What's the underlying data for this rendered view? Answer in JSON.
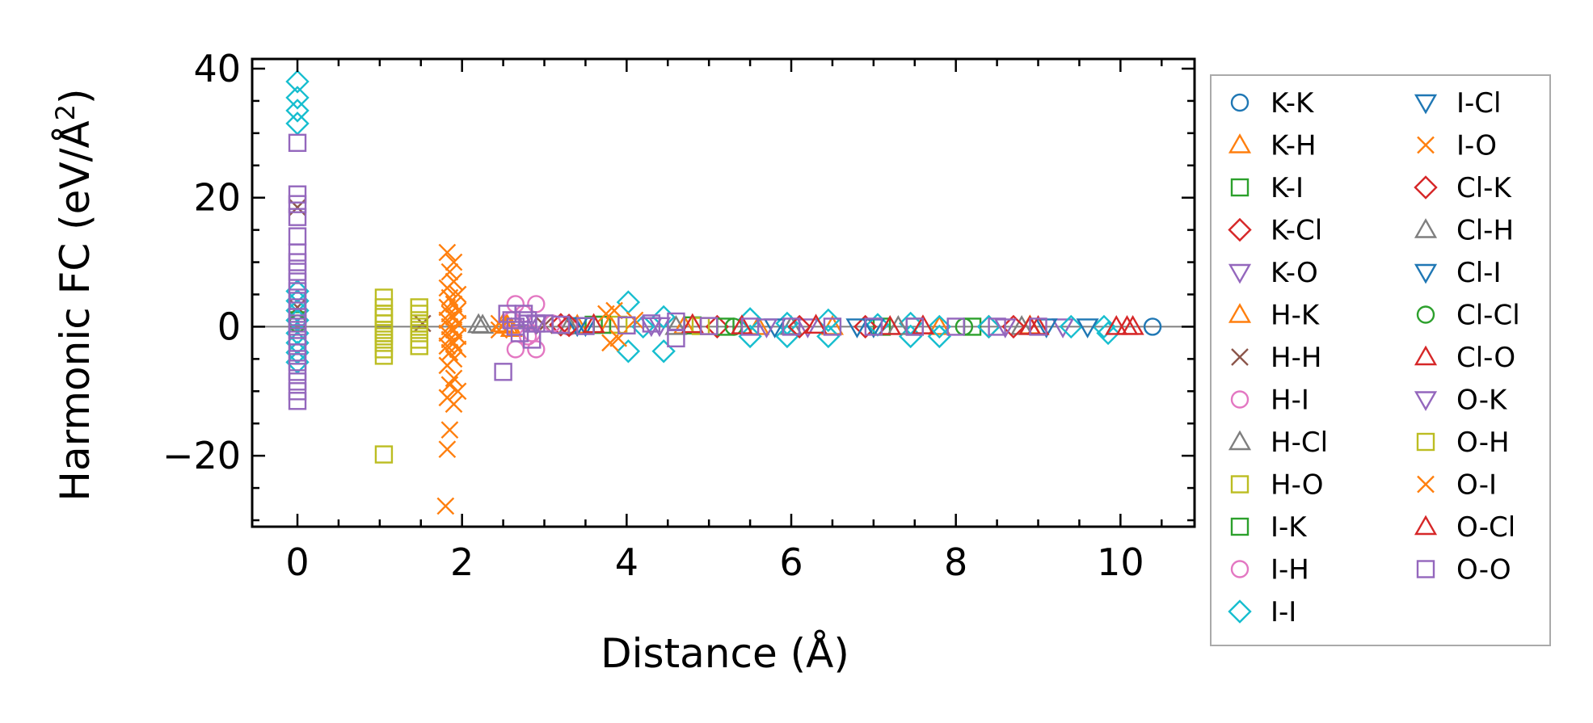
{
  "chart_data": {
    "type": "scatter",
    "xlabel": "Distance (Å)",
    "ylabel": "Harmonic FC (eV/Å",
    "ylabel_sup": "2",
    "ylabel_close": ")",
    "xlim": [
      -0.55,
      10.9
    ],
    "ylim": [
      -31,
      41.5
    ],
    "xticks": [
      0,
      2,
      4,
      6,
      8,
      10
    ],
    "yticks": [
      -20,
      0,
      20,
      40
    ],
    "xtick_labels": [
      "0",
      "2",
      "4",
      "6",
      "8",
      "10"
    ],
    "ytick_labels": [
      "−20",
      "0",
      "20",
      "40"
    ],
    "grid": false,
    "zero_line": true,
    "legend_position": "outside-right",
    "series": [
      {
        "name": "K-K",
        "color": "#1f77b4",
        "marker": "circle",
        "points": [
          [
            10.39,
            0
          ]
        ]
      },
      {
        "name": "K-H",
        "color": "#ff7f0e",
        "marker": "triangle-up",
        "points": [
          [
            2.5,
            0.4
          ],
          [
            2.6,
            -0.3
          ],
          [
            3.4,
            0.2
          ],
          [
            4.7,
            0.1
          ],
          [
            6.5,
            0.0
          ],
          [
            8.9,
            0.1
          ]
        ]
      },
      {
        "name": "K-I",
        "color": "#2ca02c",
        "marker": "square",
        "points": [
          [
            3.6,
            0.3
          ],
          [
            4.8,
            0.2
          ],
          [
            7.1,
            0.0
          ],
          [
            8.2,
            0.0
          ]
        ]
      },
      {
        "name": "K-Cl",
        "color": "#d62728",
        "marker": "diamond",
        "points": [
          [
            3.2,
            0.3
          ],
          [
            5.1,
            0.0
          ],
          [
            6.9,
            0.0
          ],
          [
            8.4,
            0.0
          ]
        ]
      },
      {
        "name": "K-O",
        "color": "#9467bd",
        "marker": "triangle-down",
        "points": [
          [
            2.8,
            0.6
          ],
          [
            4.4,
            0.2
          ],
          [
            6.2,
            0.0
          ],
          [
            9.3,
            0.0
          ]
        ]
      },
      {
        "name": "H-K",
        "color": "#ff7f0e",
        "marker": "triangle-up",
        "points": [
          [
            2.55,
            0.2
          ],
          [
            3.8,
            0.2
          ],
          [
            5.6,
            0.0
          ],
          [
            7.8,
            0.0
          ]
        ]
      },
      {
        "name": "H-H",
        "color": "#8c564b",
        "marker": "x",
        "points": [
          [
            0,
            18.5
          ],
          [
            0,
            3.0
          ],
          [
            1.52,
            0.5
          ],
          [
            3.0,
            0.2
          ]
        ]
      },
      {
        "name": "H-I",
        "color": "#e377c2",
        "marker": "circle",
        "points": [
          [
            2.65,
            3.5
          ],
          [
            2.9,
            3.5
          ],
          [
            2.65,
            -3.5
          ],
          [
            2.9,
            -3.5
          ],
          [
            2.75,
            2.0
          ],
          [
            2.8,
            -1.5
          ],
          [
            3.3,
            0.0
          ]
        ]
      },
      {
        "name": "H-Cl",
        "color": "#7f7f7f",
        "marker": "triangle-up",
        "points": [
          [
            2.2,
            0.3
          ],
          [
            3.3,
            0.1
          ],
          [
            6.0,
            0.0
          ],
          [
            8.8,
            0.0
          ]
        ]
      },
      {
        "name": "H-O",
        "color": "#bcbd22",
        "marker": "square",
        "points": [
          [
            1.05,
            4.5
          ],
          [
            1.05,
            3.0
          ],
          [
            1.05,
            1.5
          ],
          [
            1.05,
            0.5
          ],
          [
            1.05,
            -0.5
          ],
          [
            1.05,
            -1.5
          ],
          [
            1.05,
            -2.5
          ],
          [
            1.05,
            -3.5
          ],
          [
            1.05,
            -4.5
          ],
          [
            1.05,
            -19.8
          ],
          [
            1.48,
            3.0
          ],
          [
            1.48,
            2.0
          ],
          [
            1.48,
            1.0
          ],
          [
            1.48,
            0.0
          ],
          [
            1.48,
            -1.0
          ],
          [
            1.48,
            -2.0
          ],
          [
            1.48,
            -3.0
          ],
          [
            3.9,
            0.3
          ],
          [
            4.9,
            0.1
          ]
        ]
      },
      {
        "name": "I-K",
        "color": "#2ca02c",
        "marker": "square",
        "points": [
          [
            0,
            1.0
          ],
          [
            3.7,
            0.3
          ],
          [
            5.2,
            0.0
          ],
          [
            7.5,
            0.0
          ]
        ]
      },
      {
        "name": "I-H",
        "color": "#e377c2",
        "marker": "circle",
        "points": [
          [
            2.6,
            1.0
          ],
          [
            2.85,
            -1.0
          ],
          [
            3.1,
            0.5
          ]
        ]
      },
      {
        "name": "I-I",
        "color": "#17becf",
        "marker": "diamond",
        "points": [
          [
            0,
            38.0
          ],
          [
            0,
            35.5
          ],
          [
            0,
            33.5
          ],
          [
            0,
            31.5
          ],
          [
            0,
            5.5
          ],
          [
            0,
            4.0
          ],
          [
            0,
            2.5
          ],
          [
            0,
            1.0
          ],
          [
            0,
            -1.0
          ],
          [
            0,
            -2.5
          ],
          [
            0,
            -4.0
          ],
          [
            0,
            -5.5
          ],
          [
            4.02,
            3.8
          ],
          [
            4.02,
            -3.8
          ],
          [
            4.45,
            1.5
          ],
          [
            4.45,
            -3.8
          ],
          [
            4.2,
            0.0
          ],
          [
            5.5,
            1.2
          ],
          [
            5.5,
            -1.5
          ],
          [
            5.95,
            0.5
          ],
          [
            5.95,
            -1.5
          ],
          [
            6.45,
            1.0
          ],
          [
            6.45,
            -1.5
          ],
          [
            7.05,
            0.3
          ],
          [
            7.45,
            0.5
          ],
          [
            7.45,
            -1.5
          ],
          [
            7.8,
            0.0
          ],
          [
            7.8,
            -1.5
          ],
          [
            8.4,
            0.0
          ],
          [
            9.4,
            0.0
          ],
          [
            9.8,
            0.0
          ],
          [
            9.85,
            -1.0
          ]
        ]
      },
      {
        "name": "I-Cl",
        "color": "#1f77b4",
        "marker": "triangle-down",
        "points": [
          [
            3.4,
            0.2
          ],
          [
            5.8,
            0.0
          ],
          [
            7.0,
            0.0
          ],
          [
            9.6,
            0.0
          ]
        ]
      },
      {
        "name": "I-O",
        "color": "#ff7f0e",
        "marker": "x",
        "points": [
          [
            3.75,
            2.0
          ],
          [
            3.85,
            2.5
          ],
          [
            3.9,
            -1.8
          ],
          [
            3.8,
            -2.5
          ],
          [
            4.1,
            1.0
          ]
        ]
      },
      {
        "name": "Cl-K",
        "color": "#d62728",
        "marker": "diamond",
        "points": [
          [
            3.3,
            0.2
          ],
          [
            6.1,
            0.0
          ],
          [
            8.7,
            0.0
          ]
        ]
      },
      {
        "name": "Cl-H",
        "color": "#7f7f7f",
        "marker": "triangle-up",
        "points": [
          [
            2.25,
            0.2
          ],
          [
            4.6,
            0.0
          ],
          [
            7.3,
            0.0
          ]
        ]
      },
      {
        "name": "Cl-I",
        "color": "#1f77b4",
        "marker": "triangle-down",
        "points": [
          [
            3.5,
            0.2
          ],
          [
            6.8,
            0.0
          ],
          [
            9.1,
            0.0
          ]
        ]
      },
      {
        "name": "Cl-Cl",
        "color": "#2ca02c",
        "marker": "circle",
        "points": [
          [
            0,
            0.5
          ],
          [
            5.3,
            0.0
          ],
          [
            8.1,
            0.0
          ]
        ]
      },
      {
        "name": "Cl-O",
        "color": "#d62728",
        "marker": "triangle-up",
        "points": [
          [
            4.8,
            0.3
          ],
          [
            6.3,
            0.2
          ],
          [
            7.6,
            0.1
          ],
          [
            8.9,
            0.0
          ],
          [
            9.95,
            0.0
          ],
          [
            10.08,
            0.0
          ]
        ]
      },
      {
        "name": "O-K",
        "color": "#9467bd",
        "marker": "triangle-down",
        "points": [
          [
            2.9,
            0.5
          ],
          [
            4.3,
            0.2
          ],
          [
            5.7,
            0.0
          ],
          [
            8.6,
            0.0
          ]
        ]
      },
      {
        "name": "O-H",
        "color": "#bcbd22",
        "marker": "square",
        "points": [
          [
            1.05,
            2.0
          ],
          [
            1.05,
            -1.0
          ],
          [
            1.48,
            0.5
          ],
          [
            4.0,
            0.2
          ]
        ]
      },
      {
        "name": "O-I",
        "color": "#ff7f0e",
        "marker": "x",
        "points": [
          [
            1.82,
            11.5
          ],
          [
            1.9,
            10.0
          ],
          [
            1.85,
            8.5
          ],
          [
            1.9,
            7.0
          ],
          [
            1.82,
            6.0
          ],
          [
            1.95,
            5.0
          ],
          [
            1.85,
            4.5
          ],
          [
            1.9,
            3.5
          ],
          [
            1.82,
            3.0
          ],
          [
            1.95,
            2.5
          ],
          [
            1.85,
            2.0
          ],
          [
            1.9,
            1.5
          ],
          [
            1.82,
            1.0
          ],
          [
            1.95,
            0.5
          ],
          [
            1.85,
            0.0
          ],
          [
            1.9,
            -0.5
          ],
          [
            1.82,
            -1.0
          ],
          [
            1.95,
            -1.5
          ],
          [
            1.85,
            -2.0
          ],
          [
            1.9,
            -2.5
          ],
          [
            1.82,
            -3.0
          ],
          [
            1.95,
            -3.5
          ],
          [
            1.85,
            -4.0
          ],
          [
            1.9,
            -5.0
          ],
          [
            1.82,
            -6.0
          ],
          [
            1.9,
            -8.0
          ],
          [
            1.85,
            -9.0
          ],
          [
            1.95,
            -10.0
          ],
          [
            1.82,
            -11.0
          ],
          [
            1.9,
            -12.0
          ],
          [
            1.85,
            -16.0
          ],
          [
            1.82,
            -19.0
          ],
          [
            1.8,
            -27.8
          ],
          [
            2.45,
            0.5
          ],
          [
            2.45,
            -0.5
          ]
        ]
      },
      {
        "name": "O-Cl",
        "color": "#d62728",
        "marker": "triangle-up",
        "points": [
          [
            3.6,
            0.3
          ],
          [
            5.4,
            0.1
          ],
          [
            7.2,
            0.0
          ],
          [
            9.0,
            0.0
          ],
          [
            10.15,
            0.0
          ]
        ]
      },
      {
        "name": "O-O",
        "color": "#9467bd",
        "marker": "square",
        "points": [
          [
            0,
            28.5
          ],
          [
            0,
            20.5
          ],
          [
            0,
            19.0
          ],
          [
            0,
            17.0
          ],
          [
            0,
            14.0
          ],
          [
            0,
            11.5
          ],
          [
            0,
            10.0
          ],
          [
            0,
            8.5
          ],
          [
            0,
            7.0
          ],
          [
            0,
            5.5
          ],
          [
            0,
            4.0
          ],
          [
            0,
            2.5
          ],
          [
            0,
            1.5
          ],
          [
            0,
            0.5
          ],
          [
            0,
            -0.5
          ],
          [
            0,
            -1.5
          ],
          [
            0,
            -2.5
          ],
          [
            0,
            -4.0
          ],
          [
            0,
            -5.5
          ],
          [
            0,
            -7.0
          ],
          [
            0,
            -8.5
          ],
          [
            0,
            -10.0
          ],
          [
            0,
            -11.5
          ],
          [
            2.5,
            -7.0
          ],
          [
            2.55,
            2.0
          ],
          [
            2.6,
            1.0
          ],
          [
            2.65,
            0.0
          ],
          [
            2.7,
            -1.0
          ],
          [
            2.75,
            2.0
          ],
          [
            2.8,
            1.0
          ],
          [
            2.85,
            -2.0
          ],
          [
            2.9,
            0.5
          ],
          [
            3.0,
            0.5
          ],
          [
            3.2,
            0.3
          ],
          [
            3.5,
            0.1
          ],
          [
            4.0,
            0.2
          ],
          [
            4.3,
            0.5
          ],
          [
            4.6,
            -1.8
          ],
          [
            4.6,
            0.8
          ],
          [
            5.0,
            0.1
          ],
          [
            5.5,
            0.0
          ],
          [
            6.0,
            0.0
          ],
          [
            6.5,
            0.0
          ],
          [
            7.0,
            0.0
          ],
          [
            7.5,
            0.0
          ],
          [
            8.0,
            0.0
          ],
          [
            8.5,
            0.0
          ],
          [
            9.0,
            0.0
          ]
        ]
      }
    ]
  }
}
